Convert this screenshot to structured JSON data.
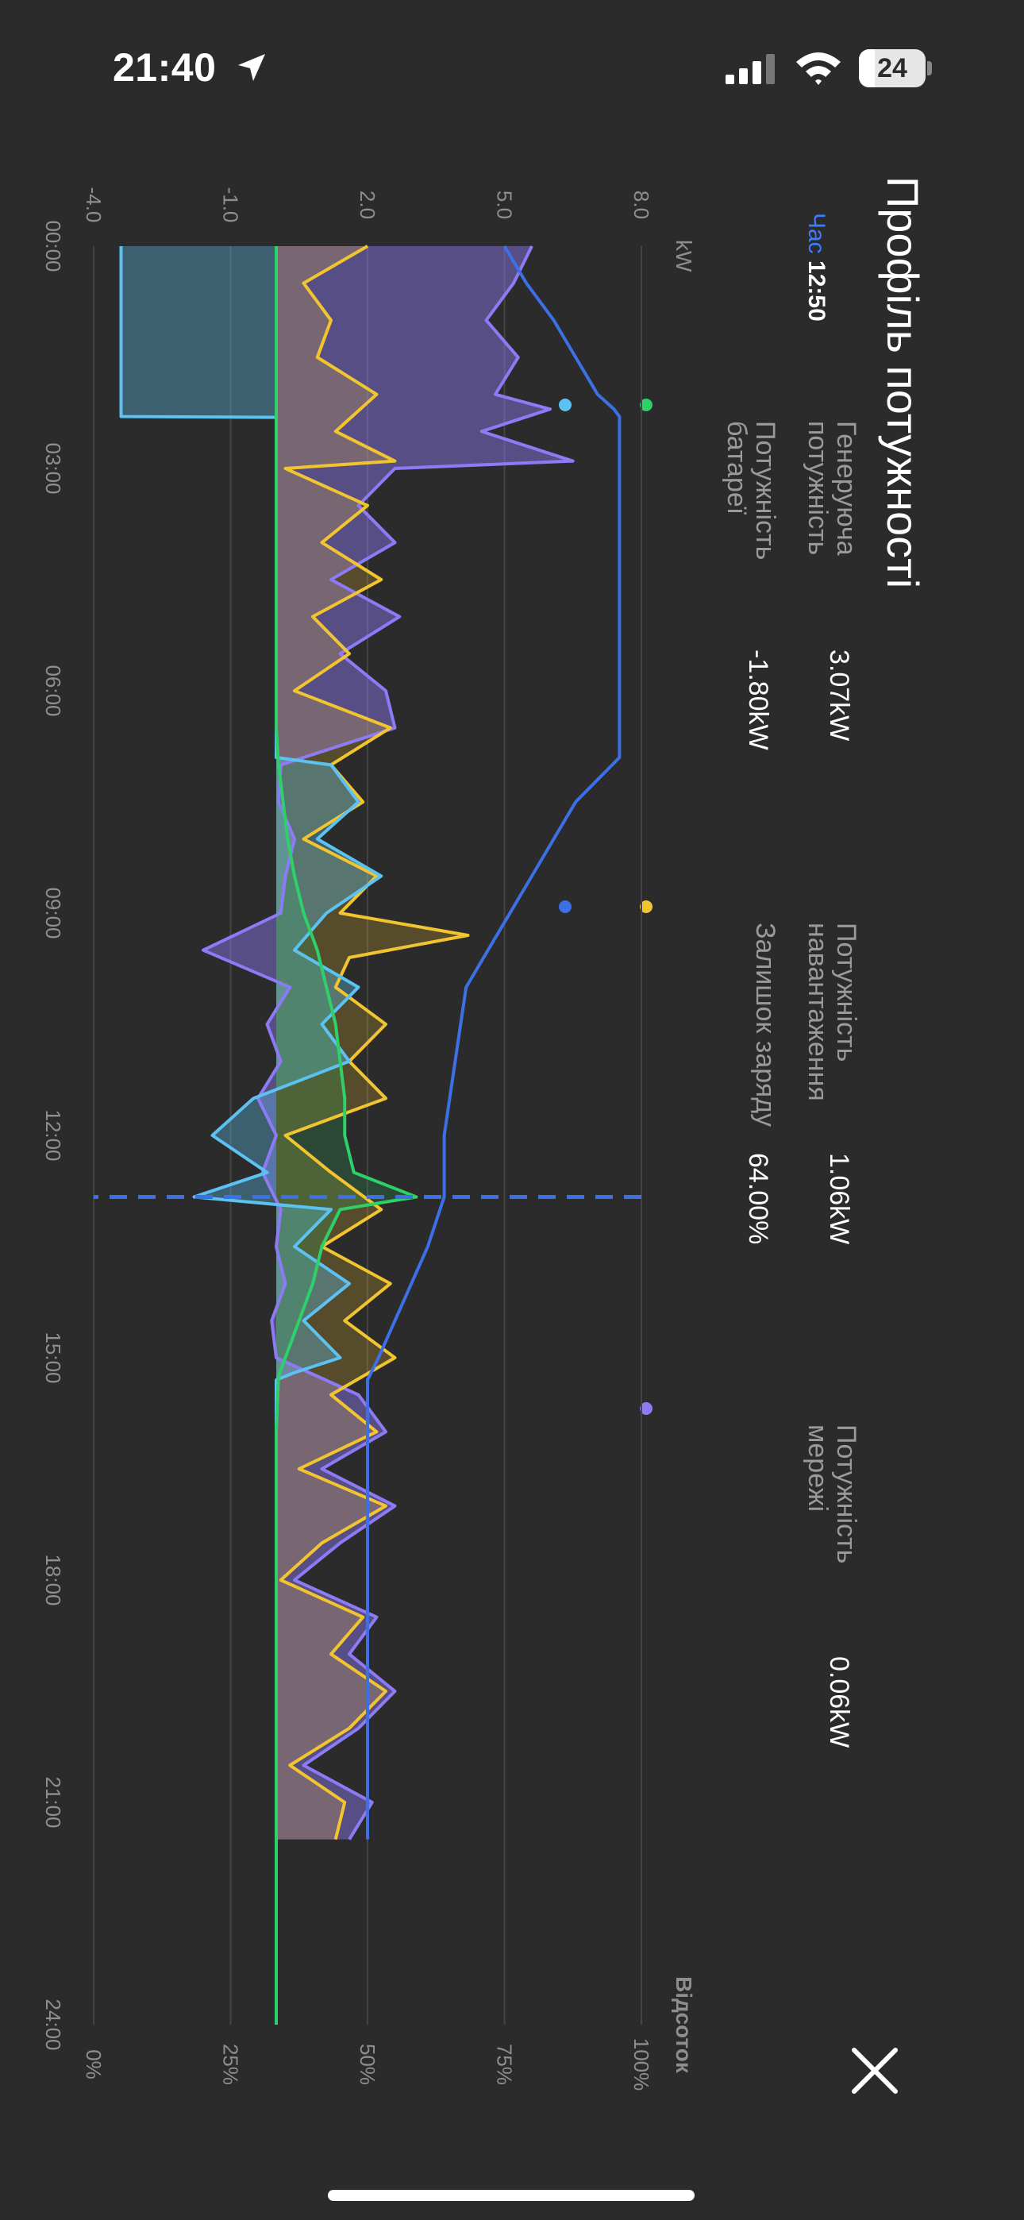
{
  "status_bar": {
    "time": "21:40",
    "battery": "24",
    "battery_level": 0.24
  },
  "panel": {
    "title": "Профіль потужності",
    "close_icon": "close-icon"
  },
  "legend": {
    "time_label": "Час",
    "time_value": "12:50",
    "items": [
      {
        "key": "generation",
        "name": "Генеруюча потужність",
        "value": "3.07kW",
        "color": "#2fcf6a"
      },
      {
        "key": "load",
        "name": "Потужність навантаження",
        "value": "1.06kW",
        "color": "#f2c530"
      },
      {
        "key": "grid",
        "name": "Потужність мережі",
        "value": "0.06kW",
        "color": "#8c7bf5"
      },
      {
        "key": "battery",
        "name": "Потужність батареї",
        "value": "-1.80kW",
        "color": "#5cc2f2"
      },
      {
        "key": "soc",
        "name": "Залишок заряду",
        "value": "64.00%",
        "color": "#3d6fe6"
      }
    ]
  },
  "chart_data": {
    "type": "line",
    "y_left_label": "kW",
    "y_right_label": "Відсоток",
    "y_left_ticks": [
      "8.0",
      "5.0",
      "2.0",
      "-1.0",
      "-4.0"
    ],
    "y_right_ticks": [
      "100%",
      "75%",
      "50%",
      "25%",
      "0%"
    ],
    "ylim_left": [
      -4,
      8
    ],
    "ylim_right": [
      0,
      100
    ],
    "x_ticks": [
      "00:00",
      "03:00",
      "06:00",
      "09:00",
      "12:00",
      "15:00",
      "18:00",
      "21:00",
      "24:00"
    ],
    "xlim_hours": [
      0,
      24
    ],
    "cursor_hour": 12.83,
    "grid": true,
    "series": [
      {
        "name": "Генеруюча потужність",
        "key": "generation",
        "x": [
          0,
          6.5,
          7,
          7.5,
          8,
          8.5,
          9,
          9.5,
          10,
          10.5,
          11,
          11.5,
          12,
          12.5,
          12.83,
          13,
          13.5,
          14,
          14.5,
          15,
          15.25,
          16,
          24
        ],
        "y": [
          0.0,
          0.0,
          0.05,
          0.15,
          0.25,
          0.4,
          0.6,
          0.9,
          1.1,
          1.3,
          1.4,
          1.5,
          1.5,
          1.7,
          3.07,
          1.4,
          1.0,
          0.8,
          0.5,
          0.2,
          0.05,
          0.0,
          0.0
        ]
      },
      {
        "name": "Потужність навантаження",
        "key": "load",
        "x": [
          0,
          0.5,
          1,
          1.5,
          2,
          2.5,
          2.9,
          3,
          3.5,
          4,
          4.5,
          5,
          5.5,
          6,
          6.5,
          7,
          7.5,
          8,
          8.5,
          9,
          9.3,
          9.6,
          10,
          10.5,
          11,
          11.5,
          12,
          12.5,
          13,
          13.5,
          14,
          14.5,
          15,
          15.5,
          16,
          16.5,
          17,
          17.5,
          18,
          18.5,
          19,
          19.5,
          20,
          20.5,
          21,
          21.5
        ],
        "y": [
          2.0,
          0.6,
          1.2,
          0.9,
          2.2,
          1.3,
          2.6,
          0.2,
          2.0,
          1.0,
          2.3,
          0.8,
          1.6,
          0.4,
          2.5,
          1.2,
          1.9,
          0.6,
          2.2,
          1.4,
          4.2,
          1.6,
          1.3,
          2.4,
          1.6,
          2.4,
          0.2,
          1.2,
          2.3,
          1.0,
          2.5,
          1.5,
          2.6,
          1.2,
          2.2,
          0.5,
          2.4,
          1.0,
          0.1,
          1.9,
          1.2,
          2.4,
          1.6,
          0.3,
          1.5,
          1.3
        ]
      },
      {
        "name": "Потужність мережі",
        "key": "grid",
        "x": [
          0,
          0.5,
          1,
          1.5,
          2,
          2.2,
          2.5,
          2.9,
          3,
          3.5,
          4,
          4.5,
          5,
          5.5,
          6,
          6.5,
          7,
          7.5,
          8,
          8.5,
          9,
          9.5,
          10,
          10.5,
          11,
          11.5,
          12,
          12.5,
          13,
          13.5,
          14,
          14.5,
          15,
          15.5,
          16,
          16.5,
          17,
          17.5,
          18,
          18.5,
          19,
          19.5,
          20,
          20.5,
          21,
          21.5
        ],
        "y": [
          5.6,
          5.2,
          4.6,
          5.3,
          4.8,
          6.0,
          4.5,
          6.5,
          2.6,
          1.8,
          2.6,
          1.2,
          2.7,
          1.4,
          2.4,
          2.6,
          0.1,
          0.05,
          0.4,
          0.2,
          0.1,
          -1.6,
          0.3,
          -0.2,
          0.1,
          -0.4,
          0.0,
          -0.3,
          0.1,
          0.0,
          0.2,
          -0.1,
          0.0,
          1.8,
          2.4,
          1.0,
          2.6,
          1.4,
          0.4,
          2.2,
          1.6,
          2.6,
          1.8,
          0.6,
          2.1,
          1.6
        ]
      },
      {
        "name": "Потужність батареї",
        "key": "battery",
        "x": [
          0,
          2.3,
          2.31,
          6.9,
          7,
          7.5,
          8,
          8.5,
          9,
          9.5,
          10,
          10.5,
          11,
          11.5,
          12,
          12.5,
          12.83,
          13,
          13.5,
          14,
          14.5,
          15,
          15.2,
          15.3,
          24
        ],
        "y": [
          -3.4,
          -3.4,
          0.0,
          0.0,
          1.2,
          1.8,
          0.9,
          2.3,
          1.1,
          0.4,
          1.8,
          1.0,
          1.6,
          -0.5,
          -1.4,
          -0.2,
          -1.8,
          1.2,
          0.4,
          1.6,
          0.6,
          1.4,
          0.4,
          0.0,
          0.0
        ]
      },
      {
        "name": "Залишок заряду",
        "key": "soc",
        "x": [
          0,
          0.5,
          1,
          1.5,
          2,
          2.2,
          2.3,
          6.9,
          7.5,
          8,
          8.5,
          9,
          9.5,
          10,
          10.5,
          11,
          11.5,
          12,
          12.5,
          12.83,
          13.5,
          14,
          14.5,
          15,
          15.3,
          16,
          21.5
        ],
        "y": [
          75,
          79,
          84,
          88,
          92,
          95,
          96,
          96,
          88,
          84,
          80,
          76,
          72,
          68,
          67,
          66,
          65,
          64,
          64,
          64,
          61,
          58,
          55,
          52,
          50,
          50,
          50
        ]
      }
    ]
  }
}
